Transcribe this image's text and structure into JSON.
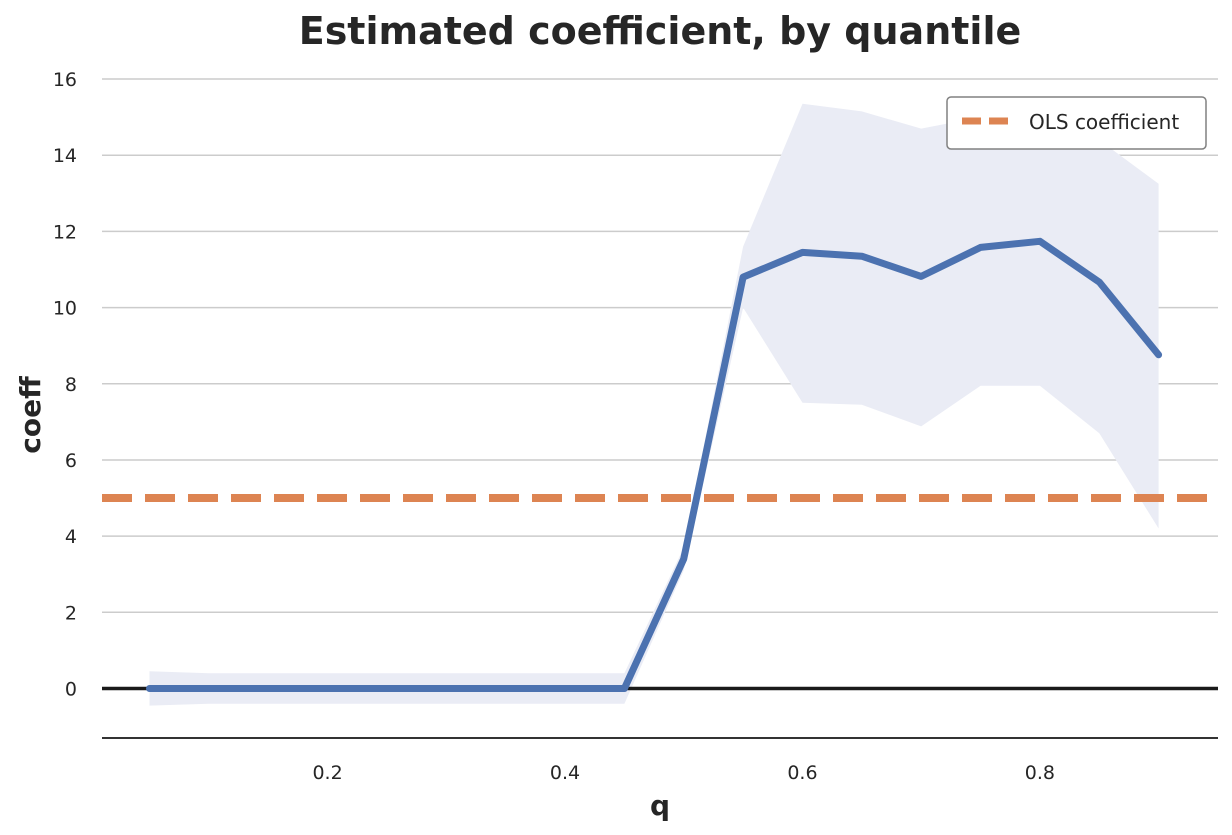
{
  "chart_data": {
    "type": "line",
    "title": "Estimated coefficient, by quantile",
    "xlabel": "q",
    "ylabel": "coeff",
    "xlim": [
      0.01,
      0.95
    ],
    "ylim": [
      -1.3,
      16.5
    ],
    "x_ticks": [
      0.2,
      0.4,
      0.6,
      0.8
    ],
    "x_tick_labels": [
      "0.2",
      "0.4",
      "0.6",
      "0.8"
    ],
    "y_ticks": [
      0,
      2,
      4,
      6,
      8,
      10,
      12,
      14,
      16
    ],
    "y_tick_labels": [
      "0",
      "2",
      "4",
      "6",
      "8",
      "10",
      "12",
      "14",
      "16"
    ],
    "grid": "horizontal",
    "legend_position": "top-right",
    "series": [
      {
        "kind": "line",
        "color": "#4c72b0",
        "x": [
          0.05,
          0.1,
          0.15,
          0.2,
          0.25,
          0.3,
          0.35,
          0.4,
          0.45,
          0.5,
          0.55,
          0.6,
          0.65,
          0.7,
          0.75,
          0.8,
          0.85,
          0.9
        ],
        "y": [
          0,
          0,
          0,
          0,
          0,
          0,
          0,
          0,
          0,
          3.4,
          10.8,
          11.45,
          11.35,
          10.82,
          11.58,
          11.74,
          10.67,
          8.76
        ],
        "lower": [
          -0.45,
          -0.4,
          -0.4,
          -0.4,
          -0.4,
          -0.4,
          -0.4,
          -0.4,
          -0.4,
          3.1,
          10.0,
          7.5,
          7.45,
          6.88,
          7.95,
          7.95,
          6.7,
          4.2
        ],
        "upper": [
          0.45,
          0.4,
          0.4,
          0.4,
          0.4,
          0.4,
          0.4,
          0.4,
          0.4,
          3.7,
          11.6,
          15.35,
          15.15,
          14.7,
          15.0,
          15.0,
          14.4,
          13.25
        ],
        "band_color": "#eaecf5"
      },
      {
        "name": "OLS coefficient",
        "kind": "hline",
        "color": "#dd8452",
        "y": 5.0,
        "style": "dashed"
      }
    ],
    "reference_line": {
      "y": 0,
      "color": "#1a1a1a"
    }
  }
}
